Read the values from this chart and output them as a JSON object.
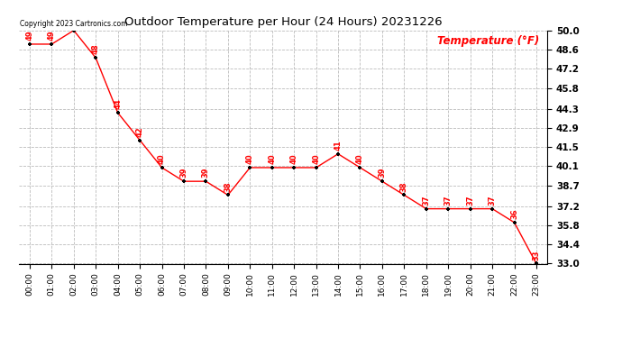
{
  "title": "Outdoor Temperature per Hour (24 Hours) 20231226",
  "hours": [
    "00:00",
    "01:00",
    "02:00",
    "03:00",
    "04:00",
    "05:00",
    "06:00",
    "07:00",
    "08:00",
    "09:00",
    "10:00",
    "11:00",
    "12:00",
    "13:00",
    "14:00",
    "15:00",
    "16:00",
    "17:00",
    "18:00",
    "19:00",
    "20:00",
    "21:00",
    "22:00",
    "23:00"
  ],
  "temps": [
    49,
    49,
    50,
    48,
    44,
    42,
    40,
    39,
    39,
    38,
    40,
    40,
    40,
    40,
    41,
    40,
    39,
    38,
    37,
    37,
    37,
    37,
    36,
    33
  ],
  "ylim_min": 33.0,
  "ylim_max": 50.0,
  "yticks": [
    33.0,
    34.4,
    35.8,
    37.2,
    38.7,
    40.1,
    41.5,
    42.9,
    44.3,
    45.8,
    47.2,
    48.6,
    50.0
  ],
  "line_color": "red",
  "marker_color": "black",
  "label_color": "red",
  "grid_color": "#bbbbbb",
  "background_color": "white",
  "copyright_text": "Copyright 2023 Cartronics.com",
  "legend_label": "Temperature (°F)"
}
